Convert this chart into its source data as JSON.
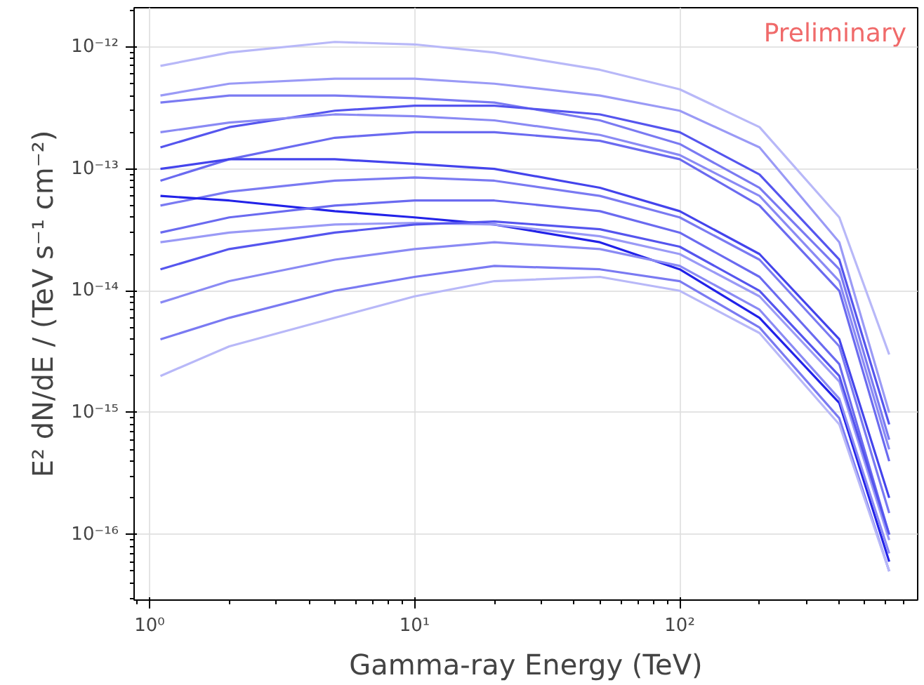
{
  "chart_data": {
    "type": "line",
    "xlabel": "Gamma-ray Energy (TeV)",
    "ylabel": "E² dN/dE / (TeV s⁻¹ cm⁻²)",
    "annotations": [
      "Preliminary"
    ],
    "log": "xy",
    "grid": true,
    "marker": "none",
    "line_style": "solid",
    "xlim": [
      0.875,
      790
    ],
    "ylim": [
      2.9e-17,
      2.1e-12
    ],
    "xticks": [
      {
        "value": 1,
        "label": "10⁰"
      },
      {
        "value": 10,
        "label": "10¹"
      },
      {
        "value": 100,
        "label": "10²"
      }
    ],
    "yticks": [
      {
        "value": 1e-16,
        "label": "10⁻¹⁶"
      },
      {
        "value": 1e-15,
        "label": "10⁻¹⁵"
      },
      {
        "value": 1e-14,
        "label": "10⁻¹⁴"
      },
      {
        "value": 1e-13,
        "label": "10⁻¹³"
      },
      {
        "value": 1e-12,
        "label": "10⁻¹²"
      }
    ],
    "x": [
      1.1,
      2,
      5,
      10,
      20,
      50,
      100,
      200,
      400,
      617
    ],
    "series": [
      {
        "color": "#b8b8f8",
        "values": [
          7e-13,
          9e-13,
          1.1e-12,
          1.05e-12,
          9e-13,
          6.5e-13,
          4.5e-13,
          2.2e-13,
          4e-14,
          3e-15
        ]
      },
      {
        "color": "#9a9af6",
        "values": [
          4e-13,
          5e-13,
          5.5e-13,
          5.5e-13,
          5e-13,
          4e-13,
          3e-13,
          1.5e-13,
          2.5e-14,
          1e-15
        ]
      },
      {
        "color": "#7a7af2",
        "values": [
          3.5e-13,
          4e-13,
          4e-13,
          3.8e-13,
          3.5e-13,
          2.5e-13,
          1.6e-13,
          7e-14,
          1.5e-14,
          6e-16
        ]
      },
      {
        "color": "#5555ee",
        "values": [
          1.5e-13,
          2.2e-13,
          3e-13,
          3.3e-13,
          3.3e-13,
          2.8e-13,
          2e-13,
          9e-14,
          1.8e-14,
          8e-16
        ]
      },
      {
        "color": "#8a8af4",
        "values": [
          2e-13,
          2.4e-13,
          2.8e-13,
          2.7e-13,
          2.5e-13,
          1.9e-13,
          1.3e-13,
          6e-14,
          1.2e-14,
          5e-16
        ]
      },
      {
        "color": "#6a6af0",
        "values": [
          8e-14,
          1.2e-13,
          1.8e-13,
          2e-13,
          2e-13,
          1.7e-13,
          1.2e-13,
          5e-14,
          1e-14,
          4e-16
        ]
      },
      {
        "color": "#4444ec",
        "values": [
          1e-13,
          1.2e-13,
          1.2e-13,
          1.1e-13,
          1e-13,
          7e-14,
          4.5e-14,
          2e-14,
          4e-15,
          2e-16
        ]
      },
      {
        "color": "#7a7af2",
        "values": [
          5e-14,
          6.5e-14,
          8e-14,
          8.5e-14,
          8e-14,
          6e-14,
          4e-14,
          1.8e-14,
          3.5e-15,
          1.5e-16
        ]
      },
      {
        "color": "#2222e8",
        "values": [
          6e-14,
          5.5e-14,
          4.5e-14,
          4e-14,
          3.5e-14,
          2.5e-14,
          1.5e-14,
          6e-15,
          1.2e-15,
          6e-17
        ]
      },
      {
        "color": "#6a6af0",
        "values": [
          3e-14,
          4e-14,
          5e-14,
          5.5e-14,
          5.5e-14,
          4.5e-14,
          3e-14,
          1.3e-14,
          2.5e-15,
          1e-16
        ]
      },
      {
        "color": "#9a9af6",
        "values": [
          2.5e-14,
          3e-14,
          3.5e-14,
          3.6e-14,
          3.5e-14,
          2.8e-14,
          2e-14,
          9e-15,
          1.8e-15,
          9e-17
        ]
      },
      {
        "color": "#5555ee",
        "values": [
          1.5e-14,
          2.2e-14,
          3e-14,
          3.5e-14,
          3.7e-14,
          3.2e-14,
          2.3e-14,
          1e-14,
          2e-15,
          1e-16
        ]
      },
      {
        "color": "#8a8af4",
        "values": [
          8e-15,
          1.2e-14,
          1.8e-14,
          2.2e-14,
          2.5e-14,
          2.2e-14,
          1.6e-14,
          7e-15,
          1.3e-15,
          7e-17
        ]
      },
      {
        "color": "#7a7af2",
        "values": [
          4e-15,
          6e-15,
          1e-14,
          1.3e-14,
          1.6e-14,
          1.5e-14,
          1.2e-14,
          5e-15,
          9e-16,
          5e-17
        ]
      },
      {
        "color": "#b8b8f8",
        "values": [
          2e-15,
          3.5e-15,
          6e-15,
          9e-15,
          1.2e-14,
          1.3e-14,
          1e-14,
          4.5e-15,
          8e-16,
          5e-17
        ]
      }
    ]
  }
}
